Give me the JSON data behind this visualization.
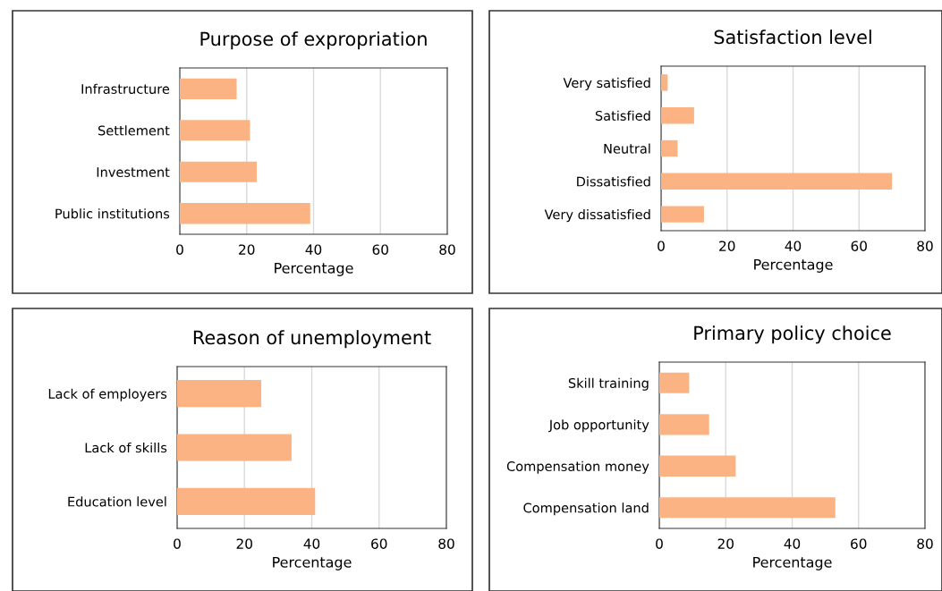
{
  "chart_data": [
    {
      "type": "bar",
      "orientation": "horizontal",
      "title": "Purpose of expropriation",
      "xlabel": "Percentage",
      "categories": [
        "Infrastructure",
        "Settlement",
        "Investment",
        "Public institutions"
      ],
      "values": [
        17,
        21,
        23,
        39
      ],
      "color": "#fbb383",
      "xlim": [
        0,
        80
      ],
      "xticks": [
        0,
        20,
        40,
        60,
        80
      ],
      "grid": "x"
    },
    {
      "type": "bar",
      "orientation": "horizontal",
      "title": "Satisfaction level",
      "xlabel": "Percentage",
      "categories": [
        "Very satisfied",
        "Satisfied",
        "Neutral",
        "Dissatisfied",
        "Very dissatisfied"
      ],
      "values": [
        2,
        10,
        5,
        70,
        13
      ],
      "color": "#fbb383",
      "xlim": [
        0,
        80
      ],
      "xticks": [
        0,
        20,
        40,
        60,
        80
      ],
      "grid": "x"
    },
    {
      "type": "bar",
      "orientation": "horizontal",
      "title": "Reason of unemployment",
      "xlabel": "Percentage",
      "categories": [
        "Lack of employers",
        "Lack of skills",
        "Education level"
      ],
      "values": [
        25,
        34,
        41
      ],
      "color": "#fbb383",
      "xlim": [
        0,
        80
      ],
      "xticks": [
        0,
        20,
        40,
        60,
        80
      ],
      "grid": "x"
    },
    {
      "type": "bar",
      "orientation": "horizontal",
      "title": "Primary policy choice",
      "xlabel": "Percentage",
      "categories": [
        "Skill training",
        "Job opportunity",
        "Compensation money",
        "Compensation land"
      ],
      "values": [
        9,
        15,
        23,
        53
      ],
      "color": "#fbb383",
      "xlim": [
        0,
        80
      ],
      "xticks": [
        0,
        20,
        40,
        60,
        80
      ],
      "grid": "x"
    }
  ]
}
